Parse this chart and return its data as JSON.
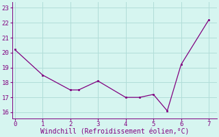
{
  "x": [
    0,
    1,
    2,
    2.3,
    3,
    4,
    4.5,
    5,
    5.5,
    6,
    7
  ],
  "y": [
    20.2,
    18.5,
    17.5,
    17.5,
    18.1,
    17.0,
    17.0,
    17.2,
    16.1,
    19.2,
    22.2
  ],
  "line_color": "#800080",
  "marker_color": "#800080",
  "bg_color": "#d6f5f0",
  "grid_color": "#b0ddd8",
  "xlabel": "Windchill (Refroidissement éolien,°C)",
  "xlim": [
    -0.1,
    7.3
  ],
  "ylim": [
    15.6,
    23.4
  ],
  "xticks": [
    0,
    1,
    2,
    3,
    4,
    5,
    6,
    7
  ],
  "yticks": [
    16,
    17,
    18,
    19,
    20,
    21,
    22,
    23
  ],
  "tick_fontsize": 6.5,
  "xlabel_fontsize": 7,
  "label_color": "#800080"
}
